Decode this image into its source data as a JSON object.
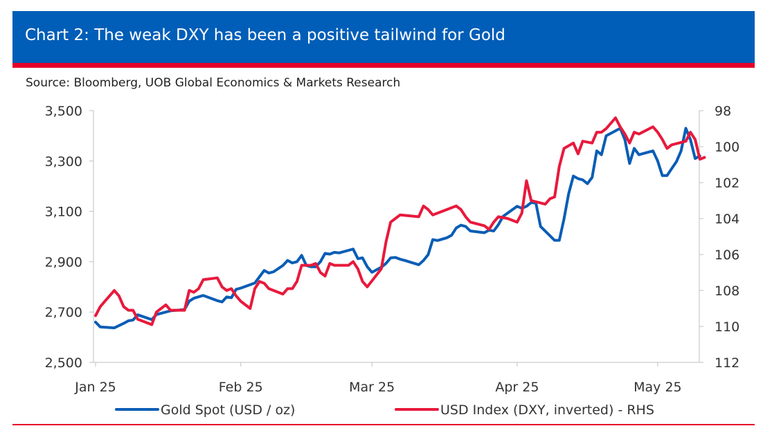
{
  "header": {
    "title": "Chart 2: The weak DXY has been a positive tailwind for Gold",
    "source": "Source: Bloomberg, UOB Global Economics & Markets Research"
  },
  "colors": {
    "banner": "#005EB8",
    "accent_red": "#E60028",
    "gold_line": "#0A5DB5",
    "dxy_line": "#E8193C"
  },
  "chart_data": {
    "type": "line",
    "title": "Chart 2: The weak DXY has been a positive tailwind for Gold",
    "x_labels": [
      "Jan 25",
      "Feb 25",
      "Mar 25",
      "Apr 25",
      "May 25"
    ],
    "x_label_days": [
      0,
      31,
      59,
      90,
      120
    ],
    "x_range_days": [
      0,
      128
    ],
    "y_left": {
      "range": [
        2500,
        3500
      ],
      "ticks": [
        "3,500",
        "3,300",
        "3,100",
        "2,900",
        "2,700",
        "2,500"
      ],
      "tick_values": [
        3500,
        3300,
        3100,
        2900,
        2700,
        2500
      ]
    },
    "y_right": {
      "range": [
        98,
        112
      ],
      "inverted": true,
      "ticks": [
        "98",
        "100",
        "102",
        "104",
        "106",
        "108",
        "110",
        "112"
      ],
      "tick_values": [
        98,
        100,
        102,
        104,
        106,
        108,
        110,
        112
      ]
    },
    "grid": false,
    "legend_position": "bottom",
    "series": [
      {
        "name": "Gold Spot (USD / oz)",
        "axis": "left",
        "color": "#0A5DB5",
        "points": [
          [
            0,
            2660
          ],
          [
            1,
            2641
          ],
          [
            4,
            2637
          ],
          [
            6,
            2655
          ],
          [
            7,
            2665
          ],
          [
            8,
            2668
          ],
          [
            9,
            2689
          ],
          [
            12,
            2670
          ],
          [
            13,
            2690
          ],
          [
            15,
            2700
          ],
          [
            16,
            2705
          ],
          [
            19,
            2710
          ],
          [
            20,
            2743
          ],
          [
            21,
            2755
          ],
          [
            23,
            2766
          ],
          [
            26,
            2745
          ],
          [
            27,
            2740
          ],
          [
            28,
            2760
          ],
          [
            29,
            2757
          ],
          [
            30,
            2790
          ],
          [
            31,
            2795
          ],
          [
            34,
            2815
          ],
          [
            35,
            2840
          ],
          [
            36,
            2865
          ],
          [
            37,
            2855
          ],
          [
            38,
            2860
          ],
          [
            40,
            2885
          ],
          [
            41,
            2905
          ],
          [
            42,
            2895
          ],
          [
            43,
            2900
          ],
          [
            44,
            2925
          ],
          [
            45,
            2885
          ],
          [
            46,
            2880
          ],
          [
            47,
            2880
          ],
          [
            48,
            2900
          ],
          [
            49,
            2933
          ],
          [
            50,
            2930
          ],
          [
            51,
            2937
          ],
          [
            52,
            2935
          ],
          [
            54,
            2945
          ],
          [
            55,
            2950
          ],
          [
            56,
            2912
          ],
          [
            57,
            2915
          ],
          [
            58,
            2880
          ],
          [
            59,
            2858
          ],
          [
            61,
            2878
          ],
          [
            62,
            2893
          ],
          [
            63,
            2915
          ],
          [
            64,
            2917
          ],
          [
            65,
            2910
          ],
          [
            66,
            2905
          ],
          [
            69,
            2888
          ],
          [
            70,
            2905
          ],
          [
            71,
            2928
          ],
          [
            72,
            2988
          ],
          [
            73,
            2984
          ],
          [
            75,
            2995
          ],
          [
            76,
            3005
          ],
          [
            77,
            3034
          ],
          [
            78,
            3045
          ],
          [
            79,
            3040
          ],
          [
            80,
            3022
          ],
          [
            83,
            3015
          ],
          [
            84,
            3025
          ],
          [
            85,
            3022
          ],
          [
            86,
            3047
          ],
          [
            87,
            3080
          ],
          [
            89,
            3107
          ],
          [
            90,
            3120
          ],
          [
            91,
            3112
          ],
          [
            92,
            3120
          ],
          [
            93,
            3135
          ],
          [
            94,
            3133
          ],
          [
            95,
            3040
          ],
          [
            98,
            2985
          ],
          [
            99,
            2985
          ],
          [
            100,
            3070
          ],
          [
            101,
            3170
          ],
          [
            102,
            3240
          ],
          [
            103,
            3230
          ],
          [
            104,
            3225
          ],
          [
            105,
            3210
          ],
          [
            106,
            3235
          ],
          [
            107,
            3340
          ],
          [
            108,
            3325
          ],
          [
            109,
            3400
          ],
          [
            112,
            3430
          ],
          [
            113,
            3385
          ],
          [
            114,
            3290
          ],
          [
            115,
            3350
          ],
          [
            116,
            3325
          ],
          [
            119,
            3340
          ],
          [
            120,
            3300
          ],
          [
            121,
            3242
          ],
          [
            122,
            3242
          ],
          [
            123,
            3270
          ],
          [
            124,
            3297
          ],
          [
            125,
            3340
          ],
          [
            126,
            3430
          ],
          [
            127,
            3385
          ],
          [
            128,
            3310
          ],
          [
            129,
            3320
          ]
        ]
      },
      {
        "name": "USD Index (DXY, inverted) - RHS",
        "axis": "right",
        "color": "#E8193C",
        "points": [
          [
            0,
            109.4
          ],
          [
            1,
            108.9
          ],
          [
            2,
            108.6
          ],
          [
            3,
            108.3
          ],
          [
            4,
            108.0
          ],
          [
            5,
            108.3
          ],
          [
            6,
            108.9
          ],
          [
            7,
            109.1
          ],
          [
            8,
            109.1
          ],
          [
            9,
            109.6
          ],
          [
            12,
            109.9
          ],
          [
            13,
            109.2
          ],
          [
            14,
            109.0
          ],
          [
            15,
            108.8
          ],
          [
            16,
            109.1
          ],
          [
            19,
            109.1
          ],
          [
            20,
            108.0
          ],
          [
            21,
            108.1
          ],
          [
            22,
            107.9
          ],
          [
            23,
            107.4
          ],
          [
            26,
            107.3
          ],
          [
            27,
            107.8
          ],
          [
            28,
            108.0
          ],
          [
            29,
            107.9
          ],
          [
            30,
            108.3
          ],
          [
            31,
            108.6
          ],
          [
            33,
            109.0
          ],
          [
            34,
            107.9
          ],
          [
            35,
            107.5
          ],
          [
            36,
            107.6
          ],
          [
            37,
            107.9
          ],
          [
            40,
            108.2
          ],
          [
            41,
            107.9
          ],
          [
            42,
            107.9
          ],
          [
            43,
            107.5
          ],
          [
            44,
            106.6
          ],
          [
            45,
            106.6
          ],
          [
            46,
            106.6
          ],
          [
            47,
            106.5
          ],
          [
            48,
            107.0
          ],
          [
            49,
            107.2
          ],
          [
            50,
            106.5
          ],
          [
            51,
            106.6
          ],
          [
            52,
            106.6
          ],
          [
            54,
            106.6
          ],
          [
            55,
            106.4
          ],
          [
            56,
            106.8
          ],
          [
            57,
            107.5
          ],
          [
            58,
            107.8
          ],
          [
            61,
            106.8
          ],
          [
            62,
            105.3
          ],
          [
            63,
            104.2
          ],
          [
            64,
            104.0
          ],
          [
            65,
            103.8
          ],
          [
            69,
            103.9
          ],
          [
            70,
            103.3
          ],
          [
            71,
            103.5
          ],
          [
            72,
            103.8
          ],
          [
            75,
            103.5
          ],
          [
            77,
            103.3
          ],
          [
            78,
            103.5
          ],
          [
            79,
            103.9
          ],
          [
            80,
            104.2
          ],
          [
            83,
            104.4
          ],
          [
            84,
            104.6
          ],
          [
            85,
            104.2
          ],
          [
            86,
            103.9
          ],
          [
            88,
            104.0
          ],
          [
            90,
            104.2
          ],
          [
            91,
            103.7
          ],
          [
            92,
            101.9
          ],
          [
            93,
            103.0
          ],
          [
            96,
            103.2
          ],
          [
            97,
            102.9
          ],
          [
            98,
            102.8
          ],
          [
            99,
            101.1
          ],
          [
            100,
            100.1
          ],
          [
            102,
            99.8
          ],
          [
            103,
            100.4
          ],
          [
            104,
            99.7
          ],
          [
            106,
            99.8
          ],
          [
            107,
            99.2
          ],
          [
            108,
            99.2
          ],
          [
            109,
            99.0
          ],
          [
            111,
            98.4
          ],
          [
            112,
            98.9
          ],
          [
            113,
            99.3
          ],
          [
            114,
            99.8
          ],
          [
            115,
            99.2
          ],
          [
            116,
            99.3
          ],
          [
            119,
            98.9
          ],
          [
            120,
            99.2
          ],
          [
            121,
            99.6
          ],
          [
            122,
            100.1
          ],
          [
            123,
            99.9
          ],
          [
            126,
            99.7
          ],
          [
            127,
            99.2
          ],
          [
            128,
            99.6
          ],
          [
            129,
            100.7
          ],
          [
            130,
            100.6
          ]
        ]
      }
    ]
  }
}
